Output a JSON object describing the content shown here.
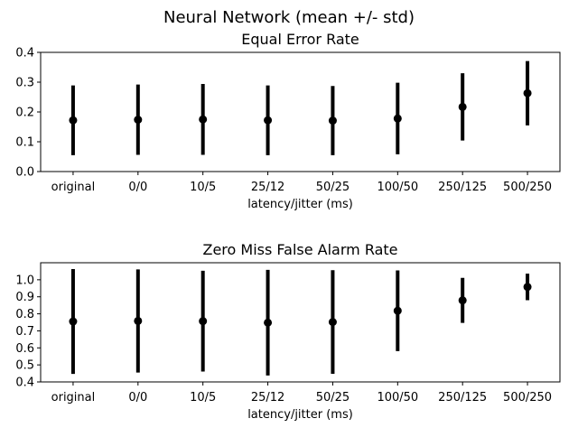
{
  "figure": {
    "suptitle": "Neural Network (mean +/- std)"
  },
  "chart_data": [
    {
      "type": "errorbar",
      "title": "Equal Error Rate",
      "xlabel": "latency/jitter (ms)",
      "ylabel": "",
      "categories": [
        "original",
        "0/0",
        "10/5",
        "25/12",
        "50/25",
        "100/50",
        "250/125",
        "500/250"
      ],
      "ylim": [
        0,
        0.4
      ],
      "yticks": [
        0.0,
        0.1,
        0.2,
        0.3,
        0.4
      ],
      "ytick_labels": [
        "0.0",
        "0.1",
        "0.2",
        "0.3",
        "0.4"
      ],
      "mean": [
        0.172,
        0.174,
        0.175,
        0.172,
        0.171,
        0.178,
        0.217,
        0.263
      ],
      "std": [
        0.117,
        0.118,
        0.119,
        0.117,
        0.116,
        0.12,
        0.113,
        0.108
      ],
      "grid": false,
      "marker_color": "#000000"
    },
    {
      "type": "errorbar",
      "title": "Zero Miss False Alarm Rate",
      "xlabel": "latency/jitter (ms)",
      "ylabel": "",
      "categories": [
        "original",
        "0/0",
        "10/5",
        "25/12",
        "50/25",
        "100/50",
        "250/125",
        "500/250"
      ],
      "ylim": [
        0.4,
        1.1
      ],
      "yticks": [
        0.4,
        0.5,
        0.6,
        0.7,
        0.8,
        0.9,
        1.0
      ],
      "ytick_labels": [
        "0.4",
        "0.5",
        "0.6",
        "0.7",
        "0.8",
        "0.9",
        "1.0"
      ],
      "mean": [
        0.755,
        0.758,
        0.757,
        0.748,
        0.752,
        0.818,
        0.879,
        0.958
      ],
      "std": [
        0.308,
        0.303,
        0.296,
        0.31,
        0.304,
        0.237,
        0.132,
        0.078
      ],
      "grid": false,
      "marker_color": "#000000"
    }
  ]
}
